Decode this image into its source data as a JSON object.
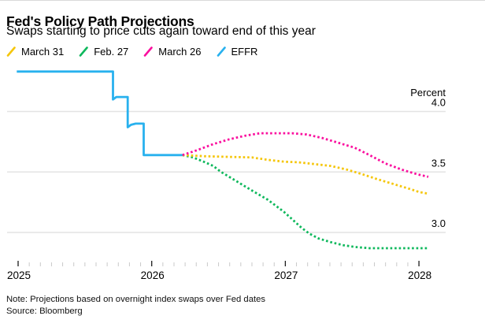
{
  "header": {
    "title": "Fed's Policy Path Projections",
    "subtitle": "Swaps starting to price cuts again toward end of this year"
  },
  "footer": {
    "note": "Note: Projections based on overnight index swaps over Fed dates",
    "source": "Source: Bloomberg"
  },
  "chart_data": {
    "type": "line",
    "title": "Fed's Policy Path Projections",
    "subtitle": "Swaps starting to price cuts again toward end of this year",
    "ylabel": "Percent",
    "xlabel": "",
    "grid": "horizontal",
    "legend_position": "top",
    "x_range": [
      2024.99,
      2028.3
    ],
    "y_range": [
      2.75,
      4.45
    ],
    "yticks": [
      {
        "value": 4.0,
        "label": "4.0"
      },
      {
        "value": 3.5,
        "label": "3.5"
      },
      {
        "value": 3.0,
        "label": "3.0"
      }
    ],
    "xticks": [
      {
        "value": 2025,
        "label": "2025"
      },
      {
        "value": 2026,
        "label": "2026"
      },
      {
        "value": 2027,
        "label": "2027"
      },
      {
        "value": 2028,
        "label": "2028"
      }
    ],
    "minor_xtick_months": true,
    "series": [
      {
        "name": "March 31",
        "color": "#F5C60B",
        "style": "dotted",
        "points": [
          [
            2026.23,
            3.64
          ],
          [
            2026.4,
            3.63
          ],
          [
            2026.58,
            3.625
          ],
          [
            2026.75,
            3.62
          ],
          [
            2026.87,
            3.6
          ],
          [
            2026.99,
            3.585
          ],
          [
            2027.1,
            3.58
          ],
          [
            2027.22,
            3.565
          ],
          [
            2027.34,
            3.55
          ],
          [
            2027.46,
            3.52
          ],
          [
            2027.58,
            3.48
          ],
          [
            2027.69,
            3.44
          ],
          [
            2027.81,
            3.4
          ],
          [
            2027.93,
            3.36
          ],
          [
            2028.0,
            3.335
          ],
          [
            2028.07,
            3.32
          ]
        ]
      },
      {
        "name": "Feb. 27",
        "color": "#0EB85C",
        "style": "dotted",
        "points": [
          [
            2026.23,
            3.64
          ],
          [
            2026.31,
            3.62
          ],
          [
            2026.4,
            3.58
          ],
          [
            2026.46,
            3.55
          ],
          [
            2026.52,
            3.5
          ],
          [
            2026.58,
            3.46
          ],
          [
            2026.64,
            3.42
          ],
          [
            2026.7,
            3.38
          ],
          [
            2026.76,
            3.34
          ],
          [
            2026.87,
            3.27
          ],
          [
            2026.99,
            3.17
          ],
          [
            2027.05,
            3.11
          ],
          [
            2027.12,
            3.04
          ],
          [
            2027.18,
            2.99
          ],
          [
            2027.25,
            2.95
          ],
          [
            2027.34,
            2.92
          ],
          [
            2027.43,
            2.895
          ],
          [
            2027.52,
            2.88
          ],
          [
            2027.63,
            2.87
          ],
          [
            2027.81,
            2.87
          ],
          [
            2028.07,
            2.87
          ]
        ]
      },
      {
        "name": "March 26",
        "color": "#FA0F9E",
        "style": "dotted",
        "points": [
          [
            2026.23,
            3.64
          ],
          [
            2026.34,
            3.68
          ],
          [
            2026.46,
            3.73
          ],
          [
            2026.58,
            3.77
          ],
          [
            2026.7,
            3.8
          ],
          [
            2026.81,
            3.82
          ],
          [
            2026.93,
            3.82
          ],
          [
            2027.05,
            3.82
          ],
          [
            2027.16,
            3.81
          ],
          [
            2027.28,
            3.78
          ],
          [
            2027.4,
            3.74
          ],
          [
            2027.52,
            3.7
          ],
          [
            2027.63,
            3.64
          ],
          [
            2027.75,
            3.57
          ],
          [
            2027.87,
            3.52
          ],
          [
            2027.99,
            3.48
          ],
          [
            2028.07,
            3.46
          ]
        ]
      },
      {
        "name": "EFFR",
        "color": "#28B1EE",
        "style": "solid",
        "points": [
          [
            2024.99,
            4.33
          ],
          [
            2025.71,
            4.33
          ],
          [
            2025.71,
            4.1
          ],
          [
            2025.735,
            4.12
          ],
          [
            2025.78,
            4.12
          ],
          [
            2025.82,
            4.12
          ],
          [
            2025.82,
            3.87
          ],
          [
            2025.845,
            3.89
          ],
          [
            2025.88,
            3.9
          ],
          [
            2025.94,
            3.9
          ],
          [
            2025.94,
            3.64
          ],
          [
            2026.23,
            3.64
          ]
        ]
      }
    ],
    "colors": {
      "gridline": "#E3E3E3",
      "minor_tick": "#C9C9C9",
      "major_tick": "#1a1a1a",
      "axis_text": "#000000"
    }
  }
}
